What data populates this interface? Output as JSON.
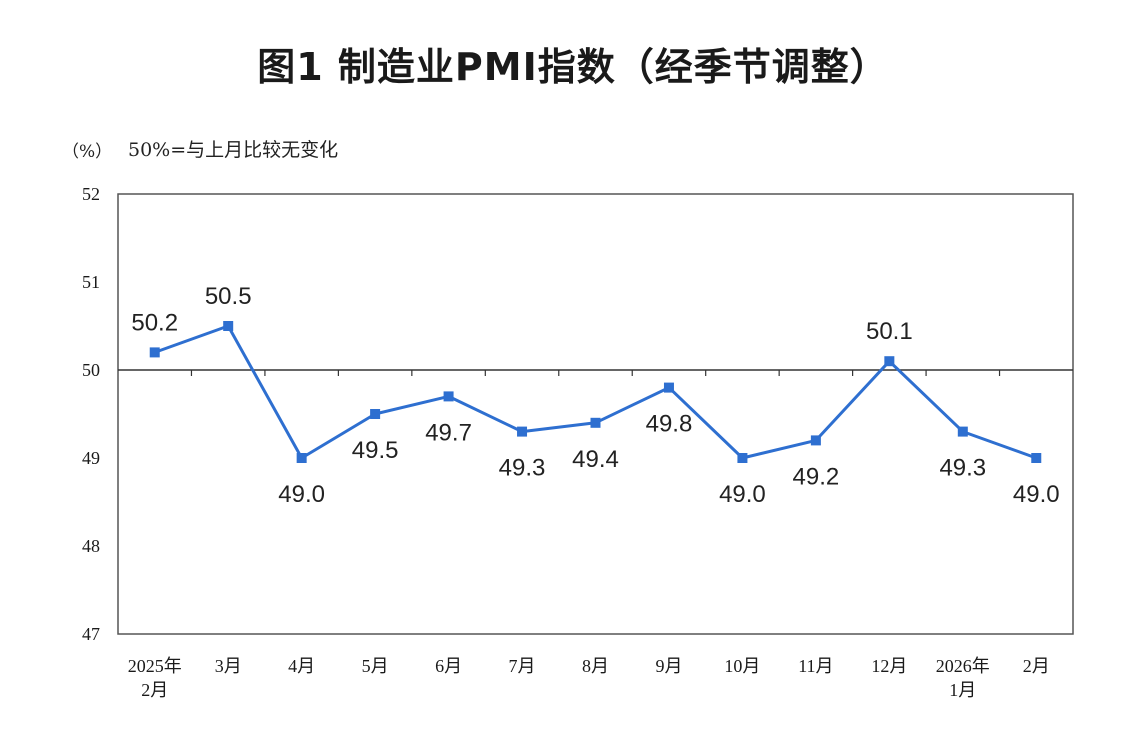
{
  "chart_data": {
    "type": "line",
    "title": "图1 制造业PMI指数（经季节调整）",
    "y_unit": "（%）",
    "note": "50%=与上月比较无变化",
    "ylim": [
      47,
      52
    ],
    "y_ticks": [
      47,
      48,
      49,
      50,
      51,
      52
    ],
    "reference_line": 50,
    "grid": false,
    "categories": [
      [
        "2025年",
        "2月"
      ],
      [
        "3月"
      ],
      [
        "4月"
      ],
      [
        "5月"
      ],
      [
        "6月"
      ],
      [
        "7月"
      ],
      [
        "8月"
      ],
      [
        "9月"
      ],
      [
        "10月"
      ],
      [
        "11月"
      ],
      [
        "12月"
      ],
      [
        "2026年",
        "1月"
      ],
      [
        "2月"
      ]
    ],
    "series": [
      {
        "values": [
          50.2,
          50.5,
          49.0,
          49.5,
          49.7,
          49.3,
          49.4,
          49.8,
          49.0,
          49.2,
          50.1,
          49.3,
          49.0
        ],
        "labels": [
          "50.2",
          "50.5",
          "49.0",
          "49.5",
          "49.7",
          "49.3",
          "49.4",
          "49.8",
          "49.0",
          "49.2",
          "50.1",
          "49.3",
          "49.0"
        ],
        "label_side": [
          "above",
          "above",
          "below",
          "below",
          "below",
          "below",
          "below",
          "below",
          "below",
          "below",
          "above",
          "below",
          "below"
        ],
        "color": "#2e6fd0"
      }
    ]
  }
}
